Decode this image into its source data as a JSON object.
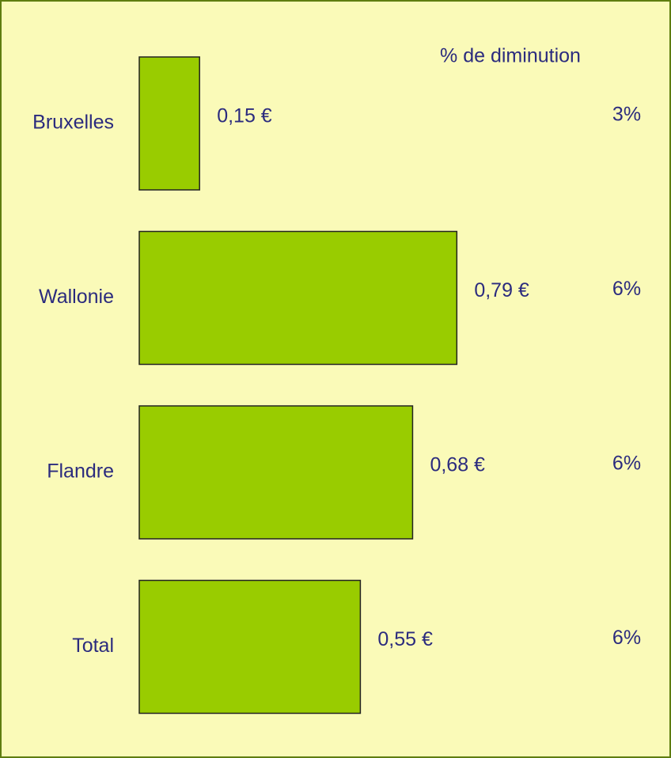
{
  "chart_data": {
    "type": "bar",
    "orientation": "horizontal",
    "categories": [
      "Bruxelles",
      "Wallonie",
      "Flandre",
      "Total"
    ],
    "values": [
      0.15,
      0.79,
      0.68,
      0.55
    ],
    "value_labels": [
      "0,15 €",
      "0,79 €",
      "0,68 €",
      "0,55 €"
    ],
    "color": "#99cc00",
    "xlim": [
      0,
      1
    ],
    "diminution": {
      "title": "% de diminution",
      "values": [
        3,
        6,
        6,
        6
      ],
      "value_labels": [
        "3%",
        "6%",
        "6%",
        "6%"
      ]
    }
  }
}
